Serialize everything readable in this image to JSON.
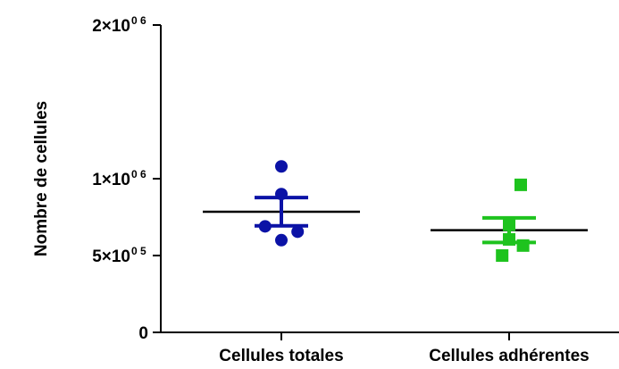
{
  "chart_data": {
    "type": "scatter",
    "ylabel": "Nombre de cellules",
    "xlabel": "",
    "ylim": [
      0,
      2000000
    ],
    "grid": false,
    "y_ticks": [
      {
        "value": 0,
        "mantissa": "0",
        "exponent": ""
      },
      {
        "value": 500000,
        "mantissa": "5×10",
        "exponent": "0 5"
      },
      {
        "value": 1000000,
        "mantissa": "1×10",
        "exponent": "0 6"
      },
      {
        "value": 2000000,
        "mantissa": "2×10",
        "exponent": "0 6"
      }
    ],
    "categories": [
      "Cellules totales",
      "Cellules adhérentes"
    ],
    "series": [
      {
        "category": "Cellules totales",
        "marker": "circle",
        "color": "#0b12a6",
        "values": [
          1080000,
          900000,
          690000,
          655000,
          600000
        ],
        "x_offsets": [
          0,
          0,
          -0.35,
          0.35,
          0
        ],
        "mean": 785000,
        "sem_low": 693000,
        "sem_high": 877000
      },
      {
        "category": "Cellules adhérentes",
        "marker": "square",
        "color": "#1ec31e",
        "values": [
          960000,
          700000,
          605000,
          565000,
          500000
        ],
        "x_offsets": [
          0.25,
          0,
          0,
          0.3,
          -0.15
        ],
        "mean": 665000,
        "sem_low": 585000,
        "sem_high": 745000
      }
    ]
  }
}
